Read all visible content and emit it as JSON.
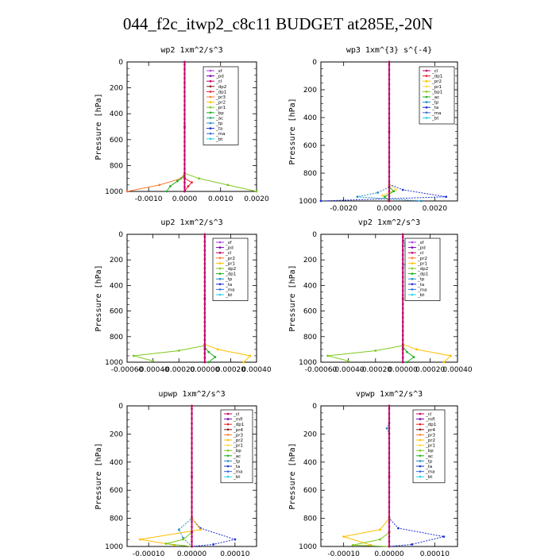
{
  "title": "044_f2c_itwp2_c8c11  BUDGET at285E,-20N",
  "chart_data": [
    {
      "type": "line",
      "title": "wp2  1xm^2/s^3",
      "ylabel": "Pressure [hPa]",
      "ylim": [
        1000,
        0
      ],
      "xlim": [
        -0.0016,
        0.002
      ],
      "yticks": [
        "0",
        "200",
        "400",
        "600",
        "800",
        "1000"
      ],
      "xticks": [
        {
          "v": -0.001,
          "t": "-0.0010"
        },
        {
          "v": 0,
          "t": "0.0000"
        },
        {
          "v": 0.001,
          "t": "0.0010"
        },
        {
          "v": 0.002,
          "t": "0.0020"
        }
      ],
      "legend": [
        "_sf",
        "_pd",
        "_cl",
        "_dp2",
        "_dp1",
        "_pr3",
        "_pr2",
        "_pr1",
        "_bp",
        "_ac",
        "_tp",
        "_ta",
        "_ma",
        "_bt"
      ],
      "colors": [
        "#b03cf0",
        "#7a00a8",
        "#c0006a",
        "#8a1a1a",
        "#e8202a",
        "#ff7a30",
        "#ffc000",
        "#7ec81e",
        "#20b020",
        "#21a37a",
        "#1f8fc8",
        "#1c2fd6",
        "#3a6fd0",
        "#24d0e8"
      ],
      "series": [
        {
          "name": "_pr3",
          "x": [
            0,
            0,
            -0.0001,
            -0.0007,
            -0.0016
          ],
          "y": [
            0,
            860,
            900,
            950,
            1000
          ]
        },
        {
          "name": "_pr1",
          "x": [
            0,
            0,
            0.0004,
            0.0012,
            0.002
          ],
          "y": [
            0,
            860,
            900,
            950,
            1000
          ]
        },
        {
          "name": "_bp",
          "x": [
            0,
            0,
            -0.0002,
            -0.0004,
            -0.0005
          ],
          "y": [
            0,
            880,
            920,
            960,
            1000
          ]
        },
        {
          "name": "_dp1",
          "x": [
            0,
            0,
            0.0002,
            0.0001,
            0
          ],
          "y": [
            0,
            900,
            930,
            960,
            1000
          ]
        },
        {
          "name": "_bt",
          "x": [
            0,
            0,
            0,
            0
          ],
          "y": [
            0,
            500,
            900,
            1000
          ]
        },
        {
          "name": "_cl",
          "x": [
            0,
            0,
            0,
            0
          ],
          "y": [
            0,
            500,
            900,
            1000
          ]
        }
      ]
    },
    {
      "type": "line",
      "title": "wp3  1xm^{3} s^{-4}",
      "ylabel": "Pressure [hPa]",
      "ylim": [
        1000,
        0
      ],
      "xlim": [
        -0.003,
        0.003
      ],
      "yticks": [
        "0",
        "200",
        "400",
        "600",
        "800",
        "1000"
      ],
      "xticks": [
        {
          "v": -0.002,
          "t": "-0.0020"
        },
        {
          "v": 0,
          "t": "0.0000"
        },
        {
          "v": 0.002,
          "t": "0.0020"
        }
      ],
      "legend": [
        "_cl",
        "_dp1",
        "_pr2",
        "_pr1",
        "_bp1",
        "_ac",
        "_tp",
        "_ta",
        "_ma",
        "_bt"
      ],
      "colors": [
        "#c0006a",
        "#e8202a",
        "#ffc000",
        "#ffd840",
        "#7ec81e",
        "#20b020",
        "#1f8fc8",
        "#1c2fd6",
        "#3a6fd0",
        "#24d0e8"
      ],
      "series": [
        {
          "name": "_ta",
          "x": [
            0,
            0,
            0.0006,
            0.0025,
            -0.003
          ],
          "y": [
            0,
            880,
            920,
            970,
            1000
          ]
        },
        {
          "name": "_tp",
          "x": [
            0,
            0,
            -0.0005,
            -0.0014,
            0.0014
          ],
          "y": [
            0,
            900,
            940,
            970,
            1000
          ]
        },
        {
          "name": "_pr1",
          "x": [
            0,
            0,
            0.0003,
            -0.0003,
            0
          ],
          "y": [
            0,
            880,
            920,
            960,
            1000
          ]
        },
        {
          "name": "_ac",
          "x": [
            0,
            0,
            0.0002,
            -0.0002,
            0
          ],
          "y": [
            0,
            900,
            930,
            970,
            1000
          ]
        },
        {
          "name": "_cl",
          "x": [
            0,
            0,
            0,
            0
          ],
          "y": [
            0,
            500,
            900,
            1000
          ]
        }
      ]
    },
    {
      "type": "line",
      "title": "up2  1xm^2/s^3",
      "ylabel": "Pressure [hPa]",
      "ylim": [
        1000,
        0
      ],
      "xlim": [
        -0.0006,
        0.0004
      ],
      "yticks": [
        "0",
        "200",
        "400",
        "600",
        "800",
        "1000"
      ],
      "xticks": [
        {
          "v": -0.0006,
          "t": "-0.00060"
        },
        {
          "v": -0.0004,
          "t": "-0.00040"
        },
        {
          "v": -0.0002,
          "t": "-0.00020"
        },
        {
          "v": 0,
          "t": "0.00000"
        },
        {
          "v": 0.0002,
          "t": "0.00020"
        },
        {
          "v": 0.0004,
          "t": "0.00040"
        }
      ],
      "legend": [
        "_sf",
        "_pd",
        "_cl",
        "_pr2",
        "_pr1",
        "_dp2",
        "_dp1",
        "_tp",
        "_ta",
        "_ma",
        "_bt"
      ],
      "colors": [
        "#b03cf0",
        "#7a00a8",
        "#c0006a",
        "#ff7a30",
        "#ffc000",
        "#7ec81e",
        "#20b020",
        "#1f8fc8",
        "#1c2fd6",
        "#3a6fd0",
        "#24d0e8"
      ],
      "series": [
        {
          "name": "_pr1",
          "x": [
            0,
            0,
            0.0001,
            0.00035,
            0.0003
          ],
          "y": [
            0,
            860,
            900,
            950,
            1000
          ]
        },
        {
          "name": "_dp2",
          "x": [
            0,
            0,
            -0.0002,
            -0.00055,
            -0.0004
          ],
          "y": [
            0,
            870,
            910,
            950,
            990
          ]
        },
        {
          "name": "_dp1",
          "x": [
            0,
            0,
            3e-05,
            8e-05,
            3e-05
          ],
          "y": [
            0,
            880,
            920,
            960,
            1000
          ]
        },
        {
          "name": "_cl",
          "x": [
            0,
            0,
            0,
            0
          ],
          "y": [
            0,
            500,
            900,
            1000
          ]
        }
      ]
    },
    {
      "type": "line",
      "title": "vp2  1xm^2/s^3",
      "ylabel": "Pressure [hPa]",
      "ylim": [
        1000,
        0
      ],
      "xlim": [
        -0.0006,
        0.0004
      ],
      "yticks": [
        "0",
        "200",
        "400",
        "600",
        "800",
        "1000"
      ],
      "xticks": [
        {
          "v": -0.0006,
          "t": "-0.00060"
        },
        {
          "v": -0.0004,
          "t": "-0.00040"
        },
        {
          "v": -0.0002,
          "t": "-0.00020"
        },
        {
          "v": 0,
          "t": "0.00000"
        },
        {
          "v": 0.0002,
          "t": "0.00020"
        },
        {
          "v": 0.0004,
          "t": "0.00040"
        }
      ],
      "legend": [
        "_sf",
        "_pd",
        "_cl",
        "_pr2",
        "_pr1",
        "_dp2",
        "_dp1",
        "_tp",
        "_ta",
        "_ma",
        "_bt"
      ],
      "colors": [
        "#b03cf0",
        "#7a00a8",
        "#c0006a",
        "#ff7a30",
        "#ffc000",
        "#7ec81e",
        "#20b020",
        "#1f8fc8",
        "#1c2fd6",
        "#3a6fd0",
        "#24d0e8"
      ],
      "series": [
        {
          "name": "_pr1",
          "x": [
            0,
            0,
            0.0001,
            0.00035,
            0.0003
          ],
          "y": [
            0,
            860,
            900,
            950,
            1000
          ]
        },
        {
          "name": "_dp2",
          "x": [
            0,
            0,
            -0.0002,
            -0.00055,
            -0.0004
          ],
          "y": [
            0,
            870,
            910,
            950,
            990
          ]
        },
        {
          "name": "_dp1",
          "x": [
            0,
            0,
            3e-05,
            8e-05,
            3e-05
          ],
          "y": [
            0,
            880,
            920,
            960,
            1000
          ]
        },
        {
          "name": "_tp",
          "x": [
            0,
            3e-05,
            0,
            0
          ],
          "y": [
            0,
            200,
            260,
            1000
          ]
        },
        {
          "name": "_cl",
          "x": [
            0,
            0,
            0,
            0
          ],
          "y": [
            0,
            500,
            900,
            1000
          ]
        }
      ]
    },
    {
      "type": "line",
      "title": "upwp  1xm^2/s^3",
      "ylabel": "Pressure [hPa]",
      "ylim": [
        1000,
        0
      ],
      "xlim": [
        -0.00015,
        0.00015
      ],
      "yticks": [
        "0",
        "200",
        "400",
        "600",
        "800",
        "1000"
      ],
      "xticks": [
        {
          "v": -0.0001,
          "t": "-0.00010"
        },
        {
          "v": 0,
          "t": "0.00000"
        },
        {
          "v": 0.0001,
          "t": "0.00010"
        }
      ],
      "legend": [
        "_cl",
        "_mfl",
        "_dp1",
        "_pr4",
        "_pr3",
        "_pr2",
        "_pr1",
        "_bp",
        "_ac",
        "_tp",
        "_ta",
        "_ma",
        "_bt"
      ],
      "colors": [
        "#c0006a",
        "#7a00a8",
        "#e8202a",
        "#8a1a1a",
        "#ff7a30",
        "#ffc000",
        "#ffd840",
        "#7ec81e",
        "#20b020",
        "#1f8fc8",
        "#1c2fd6",
        "#3a6fd0",
        "#24d0e8"
      ],
      "series": [
        {
          "name": "_ta",
          "x": [
            0,
            0,
            2e-05,
            0.0001,
            5e-05,
            0
          ],
          "y": [
            0,
            800,
            870,
            950,
            985,
            1000
          ]
        },
        {
          "name": "_tp",
          "x": [
            0,
            0,
            -3e-05,
            -2e-05,
            0
          ],
          "y": [
            0,
            800,
            880,
            940,
            1000
          ]
        },
        {
          "name": "_pr2",
          "x": [
            0,
            0,
            2e-05,
            -0.00012,
            -4e-05
          ],
          "y": [
            0,
            800,
            880,
            950,
            990
          ]
        },
        {
          "name": "_bp",
          "x": [
            0,
            0,
            -2e-05,
            -6e-05,
            0
          ],
          "y": [
            0,
            900,
            950,
            980,
            1000
          ]
        },
        {
          "name": "_cl",
          "x": [
            0,
            0,
            0,
            0
          ],
          "y": [
            0,
            500,
            900,
            1000
          ]
        }
      ]
    },
    {
      "type": "line",
      "title": "vpwp  1xm^2/s^3",
      "ylabel": "Pressure [hPa]",
      "ylim": [
        1000,
        0
      ],
      "xlim": [
        -0.00015,
        0.00015
      ],
      "yticks": [
        "0",
        "200",
        "400",
        "600",
        "800",
        "1000"
      ],
      "xticks": [
        {
          "v": -0.0001,
          "t": "-0.00010"
        },
        {
          "v": 0,
          "t": "0.00000"
        },
        {
          "v": 0.0001,
          "t": "0.00010"
        }
      ],
      "legend": [
        "_cl",
        "_mfl",
        "_dp1",
        "_pr4",
        "_pr3",
        "_pr2",
        "_pr1",
        "_bp",
        "_ac",
        "_tp",
        "_ta",
        "_ma",
        "_bt"
      ],
      "colors": [
        "#c0006a",
        "#7a00a8",
        "#e8202a",
        "#8a1a1a",
        "#ff7a30",
        "#ffc000",
        "#ffd840",
        "#7ec81e",
        "#20b020",
        "#1f8fc8",
        "#1c2fd6",
        "#3a6fd0",
        "#24d0e8"
      ],
      "series": [
        {
          "name": "_ta",
          "x": [
            0,
            0,
            2e-05,
            0.00012,
            5e-05,
            0
          ],
          "y": [
            0,
            800,
            870,
            930,
            985,
            1000
          ]
        },
        {
          "name": "_pr2",
          "x": [
            0,
            0,
            -2e-05,
            -0.0001,
            -4e-05
          ],
          "y": [
            0,
            800,
            880,
            930,
            990
          ]
        },
        {
          "name": "_bp",
          "x": [
            0,
            0,
            -2e-05,
            -8e-05,
            0
          ],
          "y": [
            0,
            900,
            950,
            990,
            1000
          ]
        },
        {
          "name": "_tp",
          "x": [
            0,
            0,
            -5e-06,
            0,
            0
          ],
          "y": [
            0,
            120,
            160,
            200,
            1000
          ]
        },
        {
          "name": "_cl",
          "x": [
            0,
            0,
            0,
            0
          ],
          "y": [
            0,
            500,
            900,
            1000
          ]
        }
      ]
    }
  ]
}
